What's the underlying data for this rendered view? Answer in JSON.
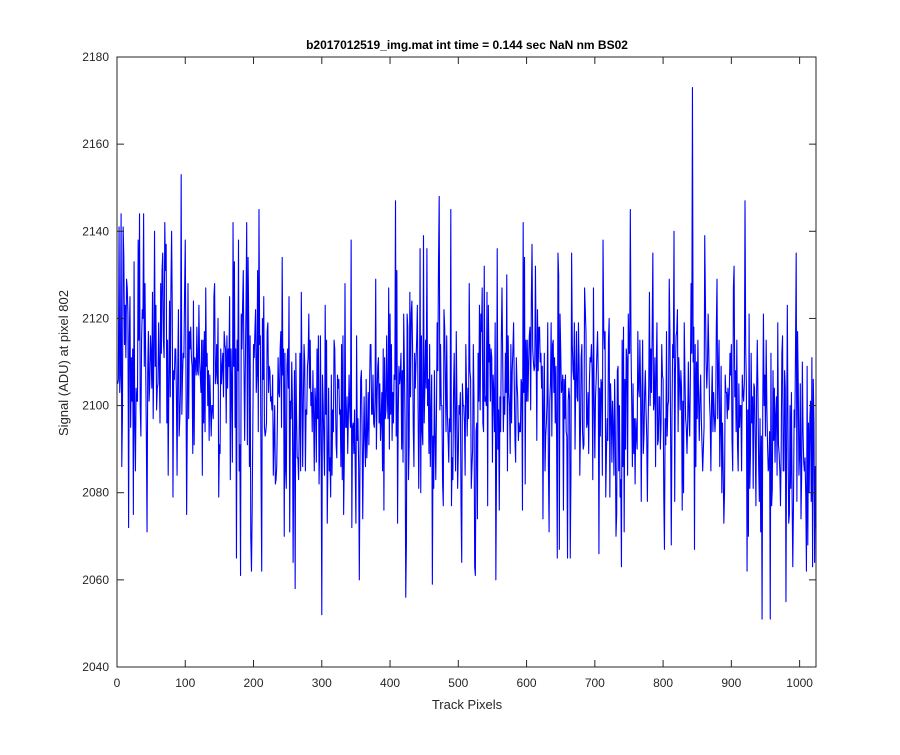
{
  "chart_data": {
    "type": "line",
    "title": "b2017012519_img.mat int time = 0.144 sec  NaN nm BS02",
    "xlabel": "Track Pixels",
    "ylabel": "Signal (ADU) at pixel 802",
    "xlim": [
      0,
      1024
    ],
    "ylim": [
      2040,
      2180
    ],
    "xticks": [
      "0",
      "100",
      "200",
      "300",
      "400",
      "500",
      "600",
      "700",
      "800",
      "900",
      "1000"
    ],
    "yticks": [
      "2040",
      "2060",
      "2080",
      "2100",
      "2120",
      "2140",
      "2160",
      "2180"
    ],
    "grid": false,
    "box": true,
    "series": [
      {
        "name": "Signal",
        "color": "#0000ff",
        "n_points": 1024,
        "x_start": 1,
        "baseline": [
          [
            0,
            2112
          ],
          [
            60,
            2113
          ],
          [
            120,
            2112
          ],
          [
            180,
            2108
          ],
          [
            240,
            2100
          ],
          [
            300,
            2097
          ],
          [
            360,
            2098
          ],
          [
            420,
            2100
          ],
          [
            480,
            2102
          ],
          [
            540,
            2103
          ],
          [
            600,
            2104
          ],
          [
            660,
            2101
          ],
          [
            720,
            2100
          ],
          [
            780,
            2101
          ],
          [
            840,
            2104
          ],
          [
            900,
            2102
          ],
          [
            960,
            2093
          ],
          [
            1024,
            2090
          ]
        ],
        "spikes": [
          [
            17,
            2072
          ],
          [
            24,
            2075
          ],
          [
            33,
            2144
          ],
          [
            39,
            2144
          ],
          [
            44,
            2071
          ],
          [
            55,
            2140
          ],
          [
            70,
            2142
          ],
          [
            80,
            2140
          ],
          [
            94,
            2153
          ],
          [
            88,
            2084
          ],
          [
            125,
            2084
          ],
          [
            175,
            2065
          ],
          [
            181,
            2061
          ],
          [
            190,
            2142
          ],
          [
            197,
            2062
          ],
          [
            212,
            2062
          ],
          [
            258,
            2064
          ],
          [
            261,
            2058
          ],
          [
            300,
            2052
          ],
          [
            343,
            2138
          ],
          [
            355,
            2060
          ],
          [
            408,
            2147
          ],
          [
            423,
            2056
          ],
          [
            462,
            2059
          ],
          [
            472,
            2148
          ],
          [
            489,
            2145
          ],
          [
            525,
            2061
          ],
          [
            555,
            2060
          ],
          [
            660,
            2065
          ],
          [
            664,
            2065
          ],
          [
            739,
            2063
          ],
          [
            752,
            2145
          ],
          [
            812,
            2068
          ],
          [
            843,
            2173
          ],
          [
            846,
            2067
          ],
          [
            920,
            2147
          ],
          [
            923,
            2062
          ],
          [
            945,
            2051
          ],
          [
            957,
            2051
          ],
          [
            980,
            2055
          ],
          [
            995,
            2135
          ],
          [
            1022,
            2064
          ],
          [
            1010,
            2062
          ],
          [
            1019,
            2063
          ]
        ],
        "noise_sigma": 13.5,
        "min_value": 2051,
        "max_value": 2173
      }
    ]
  }
}
